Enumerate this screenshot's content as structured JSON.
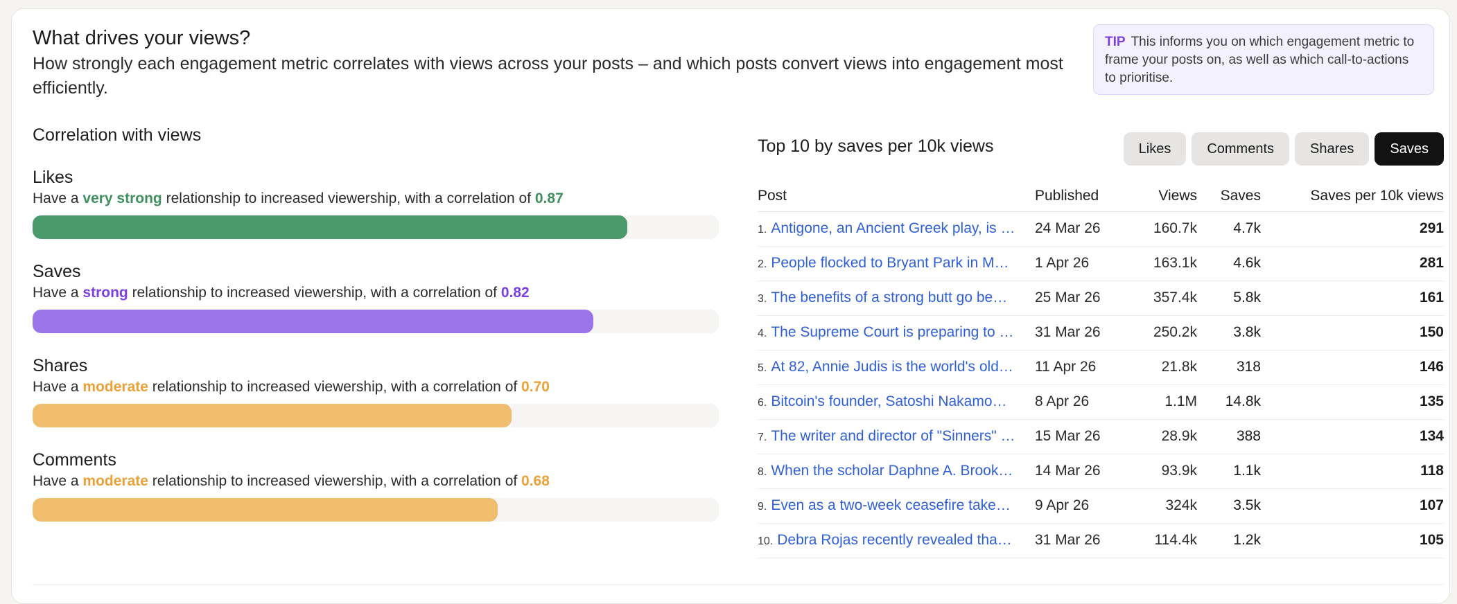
{
  "header": {
    "title": "What drives your views?",
    "subtitle": "How strongly each engagement metric correlates with views across your posts – and which posts convert views into engagement most efficiently."
  },
  "tip": {
    "label": "TIP",
    "text": "This informs you on which engagement metric to frame your posts on, as well as which call-to-actions to prioritise."
  },
  "correlation": {
    "title": "Correlation with views",
    "prefix": "Have a",
    "middle": "relationship to increased viewership, with a correlation of",
    "metrics": [
      {
        "name": "Likes",
        "strength": "very strong",
        "value": "0.87",
        "fraction": 0.87,
        "color": "#4a9a6c",
        "text_color": "#3f8f5f"
      },
      {
        "name": "Saves",
        "strength": "strong",
        "value": "0.82",
        "fraction": 0.82,
        "color": "#9b74ea",
        "text_color": "#7b3fe0"
      },
      {
        "name": "Shares",
        "strength": "moderate",
        "value": "0.70",
        "fraction": 0.7,
        "color": "#f0bd6e",
        "text_color": "#e9a13a"
      },
      {
        "name": "Comments",
        "strength": "moderate",
        "value": "0.68",
        "fraction": 0.68,
        "color": "#f0bd6e",
        "text_color": "#e9a13a"
      }
    ]
  },
  "top_table": {
    "title": "Top 10 by saves per 10k views",
    "tabs": [
      {
        "label": "Likes",
        "active": false
      },
      {
        "label": "Comments",
        "active": false
      },
      {
        "label": "Shares",
        "active": false
      },
      {
        "label": "Saves",
        "active": true
      }
    ],
    "columns": {
      "post": "Post",
      "published": "Published",
      "views": "Views",
      "saves": "Saves",
      "rate": "Saves per 10k views"
    },
    "rows": [
      {
        "rank": "1.",
        "post": "Antigone, an Ancient Greek play, is …",
        "published": "24 Mar 26",
        "views": "160.7k",
        "saves": "4.7k",
        "rate": "291"
      },
      {
        "rank": "2.",
        "post": "People flocked to Bryant Park in M…",
        "published": "1 Apr 26",
        "views": "163.1k",
        "saves": "4.6k",
        "rate": "281"
      },
      {
        "rank": "3.",
        "post": "The benefits of a strong butt go be…",
        "published": "25 Mar 26",
        "views": "357.4k",
        "saves": "5.8k",
        "rate": "161"
      },
      {
        "rank": "4.",
        "post": "The Supreme Court is preparing to …",
        "published": "31 Mar 26",
        "views": "250.2k",
        "saves": "3.8k",
        "rate": "150"
      },
      {
        "rank": "5.",
        "post": "At 82, Annie Judis is the world's old…",
        "published": "11 Apr 26",
        "views": "21.8k",
        "saves": "318",
        "rate": "146"
      },
      {
        "rank": "6.",
        "post": "Bitcoin's founder, Satoshi Nakamo…",
        "published": "8 Apr 26",
        "views": "1.1M",
        "saves": "14.8k",
        "rate": "135"
      },
      {
        "rank": "7.",
        "post": "The writer and director of \"Sinners\" …",
        "published": "15 Mar 26",
        "views": "28.9k",
        "saves": "388",
        "rate": "134"
      },
      {
        "rank": "8.",
        "post": "When the scholar Daphne A. Brook…",
        "published": "14 Mar 26",
        "views": "93.9k",
        "saves": "1.1k",
        "rate": "118"
      },
      {
        "rank": "9.",
        "post": "Even as a two-week ceasefire take…",
        "published": "9 Apr 26",
        "views": "324k",
        "saves": "3.5k",
        "rate": "107"
      },
      {
        "rank": "10.",
        "post": "Debra Rojas recently revealed tha…",
        "published": "31 Mar 26",
        "views": "114.4k",
        "saves": "1.2k",
        "rate": "105"
      }
    ]
  }
}
